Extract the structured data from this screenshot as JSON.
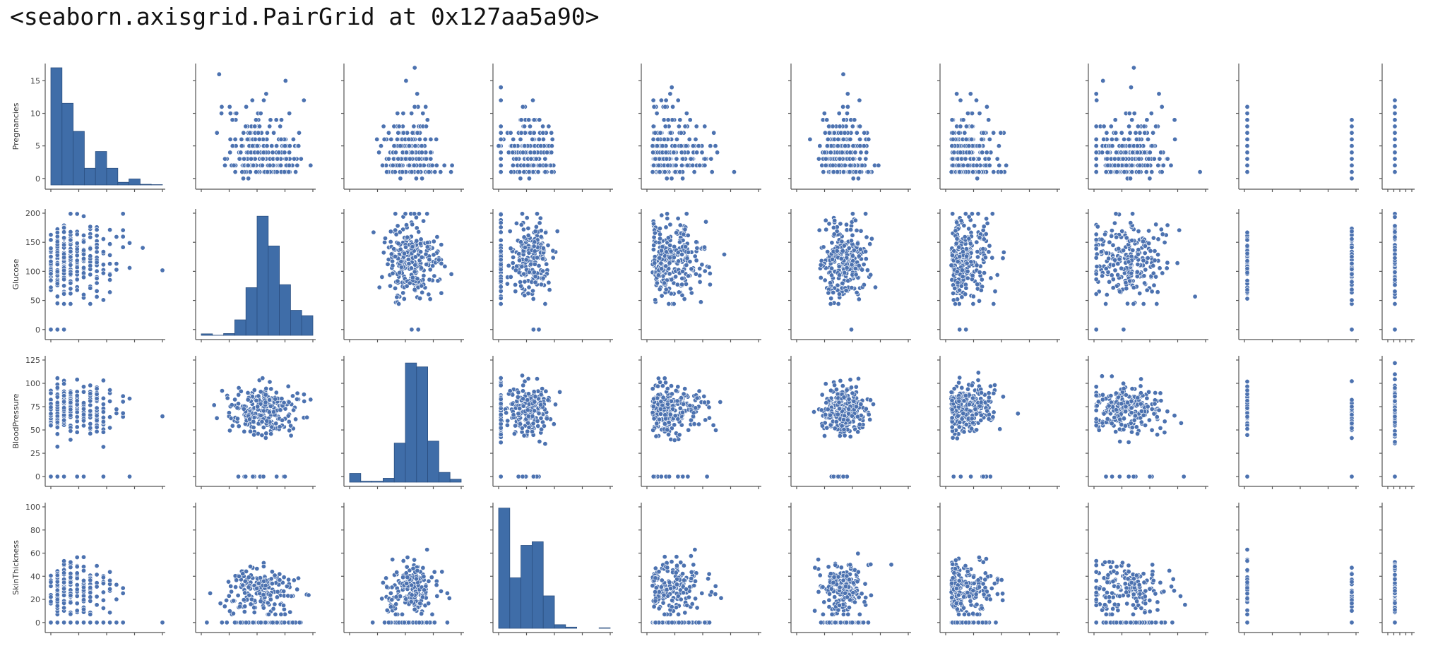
{
  "output_repr": "<seaborn.axisgrid.PairGrid at 0x127aa5a90>",
  "colors": {
    "marker": "#4C72B0",
    "marker_edge": "#ffffff",
    "bar": "#3F6DA8",
    "bar_edge": "#2B4F80"
  },
  "chart_data": {
    "type": "scatter",
    "kind": "pairgrid",
    "row_variables": [
      "Pregnancies",
      "Glucose",
      "BloodPressure",
      "SkinThickness"
    ],
    "column_count": 10,
    "rows": [
      {
        "name": "Pregnancies",
        "ylim": [
          -1,
          17
        ],
        "yticks": [
          0,
          5,
          10,
          15
        ]
      },
      {
        "name": "Glucose",
        "ylim": [
          -10,
          200
        ],
        "yticks": [
          0,
          50,
          100,
          150,
          200
        ]
      },
      {
        "name": "BloodPressure",
        "ylim": [
          -6,
          125
        ],
        "yticks": [
          0,
          25,
          50,
          75,
          100,
          125
        ]
      },
      {
        "name": "SkinThickness",
        "ylim": [
          -5,
          100
        ],
        "yticks": [
          0,
          20,
          40,
          60,
          80,
          100
        ]
      }
    ],
    "diagonal_histograms": [
      {
        "row": 0,
        "counts": [
          17.5,
          12.2,
          8.0,
          2.5,
          5.0,
          2.5,
          0.4,
          0.9,
          0.1,
          0.05
        ]
      },
      {
        "row": 1,
        "counts": [
          2.5,
          0.2,
          3.0,
          26.0,
          80.0,
          200.0,
          150.0,
          85.0,
          42.0,
          33.0
        ],
        "y_scale_max": 205
      },
      {
        "row": 2,
        "counts": [
          9,
          1,
          1,
          4,
          40,
          122,
          118,
          42,
          10,
          3
        ],
        "y_scale_max": 125
      },
      {
        "row": 3,
        "counts": [
          100,
          42,
          69,
          72,
          27,
          3,
          1,
          0,
          0,
          0.4
        ],
        "y_scale_max": 101
      }
    ],
    "notes_visible": "Pairwise scatter matrix of 4 rows × 10 columns; diagonal cells are histograms, off-diagonal cells are scatter plots with blue markers."
  }
}
